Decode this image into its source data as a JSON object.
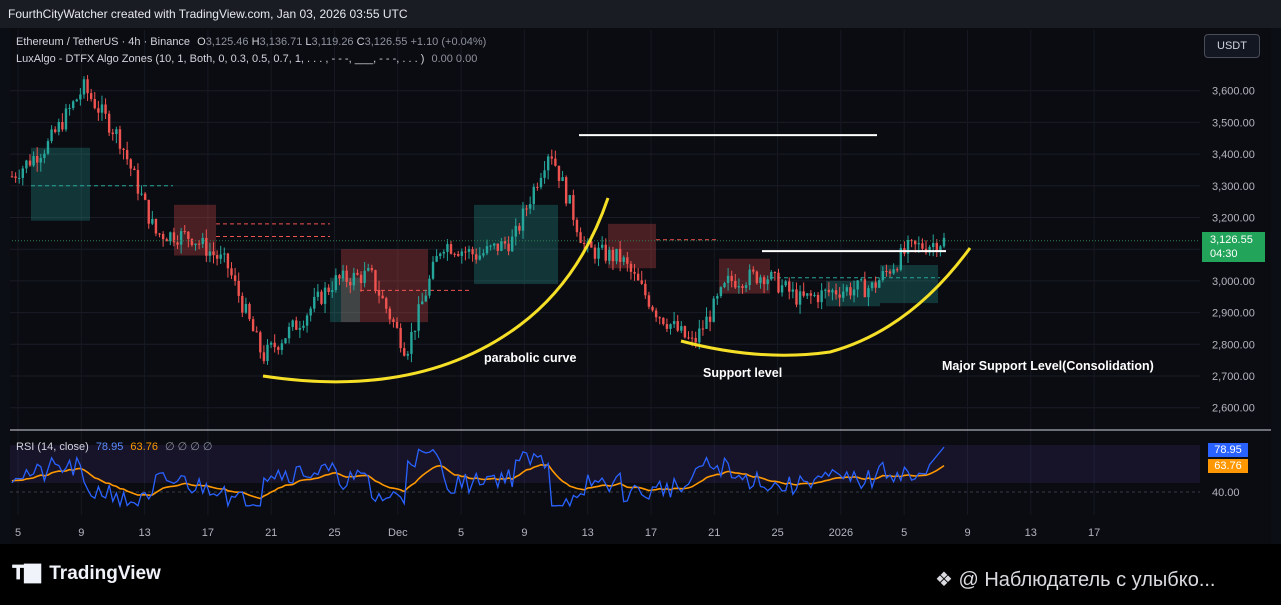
{
  "header": {
    "title": "FourthCityWatcher created with TradingView.com, Jan 03, 2026 03:55 UTC"
  },
  "legend": {
    "symbol": "Ethereum / TetherUS · 4h · Binance",
    "o_label": "O",
    "o_value": "3,125.46",
    "h_label": "H",
    "h_value": "3,136.71",
    "l_label": "L",
    "l_value": "3,119.26",
    "c_label": "C",
    "c_value": "3,126.55",
    "change": "+1.10 (+0.04%)",
    "indicator": "LuxAlgo - DTFX Algo Zones (10, 1, Both, 0, 0.3, 0.5, 0.7, 1, . . . , - - -, ___, - - -, . . . )",
    "indicator_values": "0.00  0.00"
  },
  "currency_button": "USDT",
  "price_tag": {
    "price": "3,126.55",
    "countdown": "04:30"
  },
  "rsi_legend": {
    "label": "RSI (14, close)",
    "rsi": "78.95",
    "ma": "63.76",
    "extra": "∅ ∅ ∅ ∅"
  },
  "rsi_tags": {
    "rsi": "78.95",
    "ma": "63.76"
  },
  "annotations": {
    "parabolic": "parabolic curve",
    "support": "Support level",
    "major": "Major Support Level(Consolidation)"
  },
  "footer": {
    "logo_text": "TradingView",
    "watermark": "@ Наблюдатель с улыбко..."
  },
  "colors": {
    "up": "#26a69a",
    "down": "#ef5350",
    "curve": "#f5e027",
    "rsi_line": "#2962ff",
    "rsi_ma": "#ff9800"
  },
  "chart_data": [
    {
      "type": "candlestick",
      "title": "Ethereum / TetherUS · 4h · Binance",
      "ylim": [
        2550,
        3750
      ],
      "y_ticks": [
        "2,600.00",
        "2,700.00",
        "2,800.00",
        "2,900.00",
        "3,000.00",
        "3,100.00",
        "3,200.00",
        "3,300.00",
        "3,400.00",
        "3,500.00",
        "3,600.00"
      ],
      "x_ticks": [
        "5",
        "9",
        "13",
        "17",
        "21",
        "25",
        "Dec",
        "5",
        "9",
        "13",
        "17",
        "21",
        "25",
        "2026",
        "5",
        "9",
        "13",
        "17"
      ],
      "approx_close_path": [
        {
          "t": "Nov 5",
          "close": 3330
        },
        {
          "t": "Nov 7",
          "close": 3430
        },
        {
          "t": "Nov 10",
          "close": 3610
        },
        {
          "t": "Nov 12",
          "close": 3450
        },
        {
          "t": "Nov 14",
          "close": 3150
        },
        {
          "t": "Nov 17",
          "close": 3140
        },
        {
          "t": "Nov 19",
          "close": 3050
        },
        {
          "t": "Nov 21",
          "close": 2760
        },
        {
          "t": "Nov 24",
          "close": 2870
        },
        {
          "t": "Nov 27",
          "close": 3000
        },
        {
          "t": "Nov 29",
          "close": 3020
        },
        {
          "t": "Dec 1",
          "close": 2780
        },
        {
          "t": "Dec 3",
          "close": 3120
        },
        {
          "t": "Dec 5",
          "close": 3080
        },
        {
          "t": "Dec 8",
          "close": 3130
        },
        {
          "t": "Dec 10",
          "close": 3420
        },
        {
          "t": "Dec 12",
          "close": 3100
        },
        {
          "t": "Dec 15",
          "close": 3070
        },
        {
          "t": "Dec 17",
          "close": 2900
        },
        {
          "t": "Dec 18",
          "close": 2800
        },
        {
          "t": "Dec 21",
          "close": 3000
        },
        {
          "t": "Dec 23",
          "close": 3020
        },
        {
          "t": "Dec 26",
          "close": 2940
        },
        {
          "t": "Dec 29",
          "close": 2970
        },
        {
          "t": "Dec 31",
          "close": 2980
        },
        {
          "t": "Jan 2",
          "close": 3100
        },
        {
          "t": "Jan 3",
          "close": 3126.55
        }
      ],
      "levels": [
        {
          "price": 3460,
          "style": "solid white"
        },
        {
          "price": 3094,
          "style": "solid white"
        }
      ]
    },
    {
      "type": "line",
      "title": "RSI (14, close)",
      "y_ticks": [
        "40.00"
      ],
      "series": [
        {
          "name": "RSI",
          "last": 78.95
        },
        {
          "name": "MA",
          "last": 63.76
        }
      ]
    }
  ]
}
